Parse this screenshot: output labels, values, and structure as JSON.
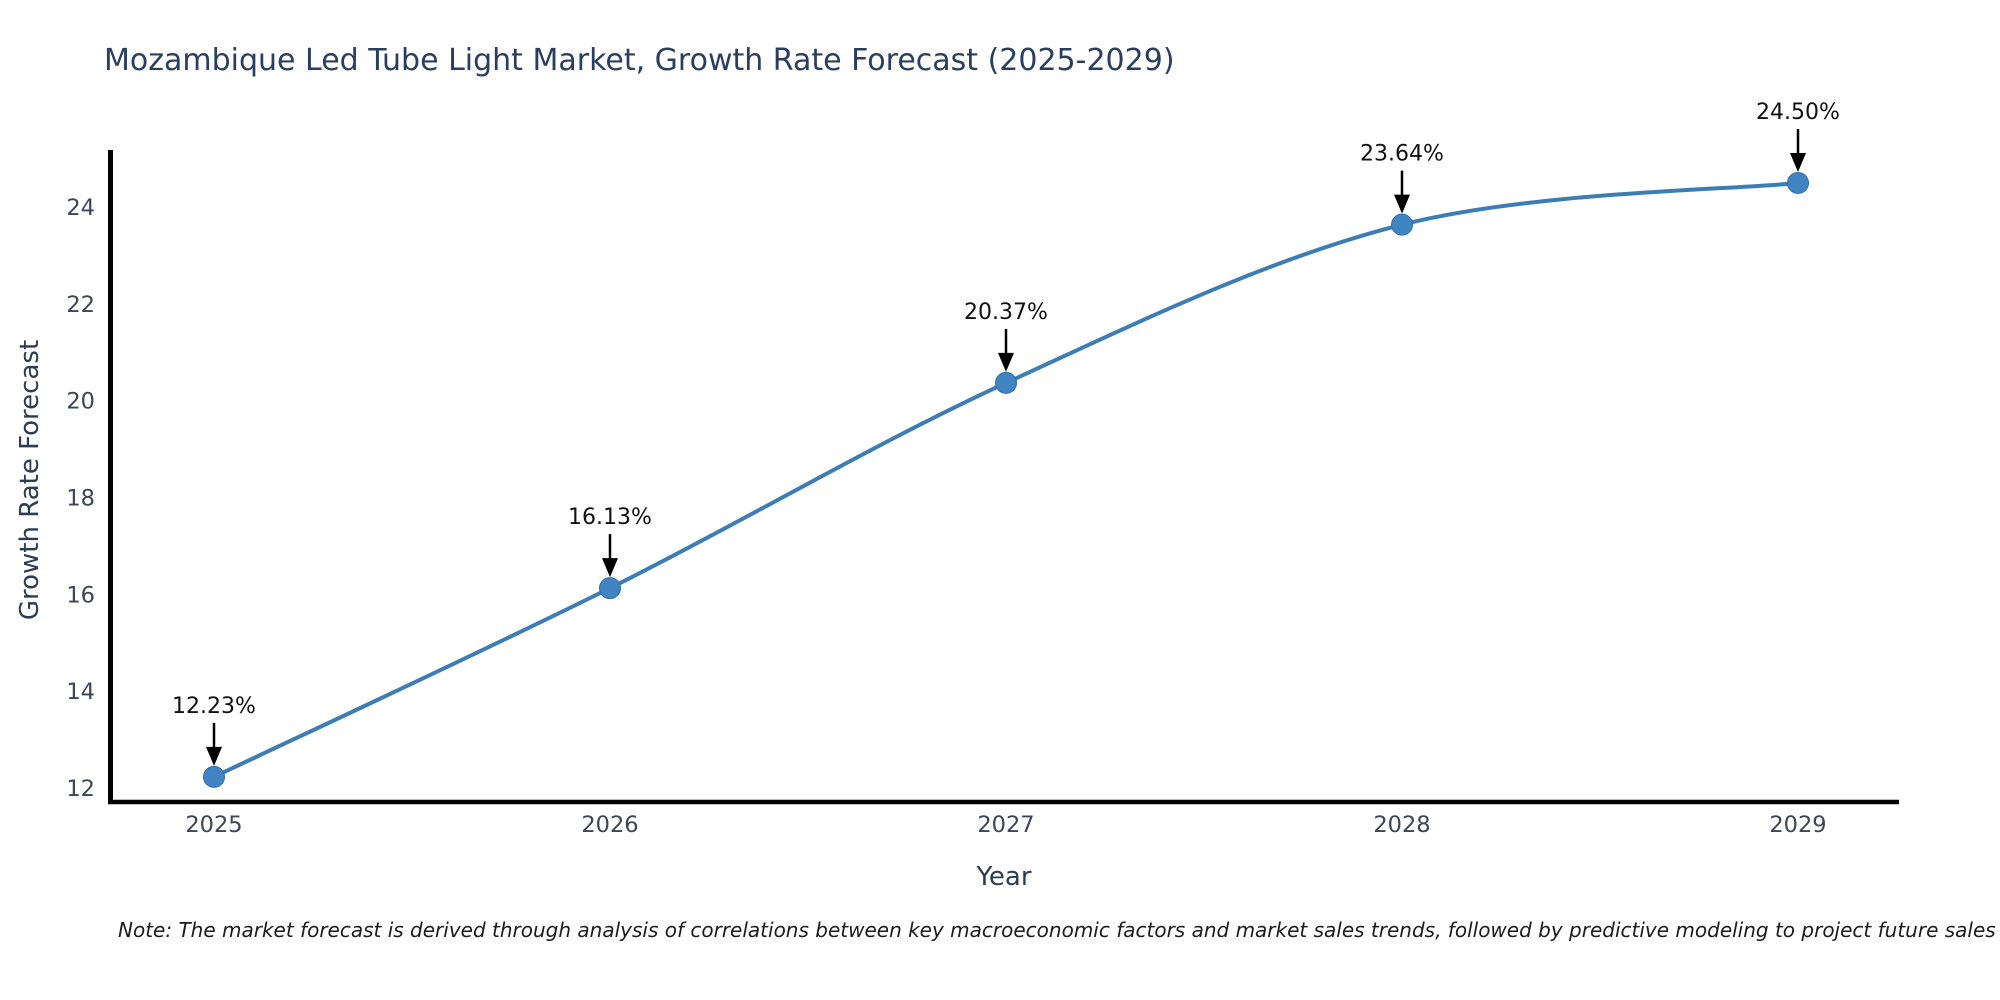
{
  "chart_data": {
    "type": "line",
    "title": "Mozambique Led Tube Light Market, Growth Rate Forecast (2025-2029)",
    "xlabel": "Year",
    "ylabel": "Growth Rate Forecast",
    "x": [
      2025,
      2026,
      2027,
      2028,
      2029
    ],
    "values": [
      12.23,
      16.13,
      20.37,
      23.64,
      24.5
    ],
    "point_labels": [
      "12.23%",
      "16.13%",
      "20.37%",
      "23.64%",
      "24.50%"
    ],
    "xticks": [
      "2025",
      "2026",
      "2027",
      "2028",
      "2029"
    ],
    "yticks": [
      12,
      14,
      16,
      18,
      20,
      22,
      24
    ],
    "ylim": [
      11.7,
      25.1
    ],
    "grid": false,
    "legend_position": "none",
    "line_color": "#3c7db5",
    "marker_color": "#4084c1",
    "marker_edge_color": "#2f6da8",
    "arrow_color": "#000000",
    "axis_color": "#000000",
    "note": "Note: The market forecast is derived through analysis of correlations between key macroeconomic factors and market sales trends, followed by predictive modeling to project future sales"
  }
}
